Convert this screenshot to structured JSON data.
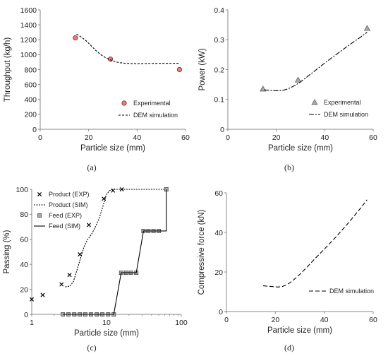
{
  "chart_data": [
    {
      "id": "a",
      "caption": "(a)",
      "type": "scatter",
      "xlabel": "Particle size (mm)",
      "ylabel": "Throughput (kg/h)",
      "xlim": [
        0,
        60
      ],
      "ylim": [
        0,
        1600
      ],
      "xticks": [
        0,
        20,
        40,
        60
      ],
      "yticks": [
        0,
        200,
        400,
        600,
        800,
        1000,
        1200,
        1400,
        1600
      ],
      "grid": false,
      "legend_position": "bottom-right",
      "series": [
        {
          "name": "Experimental",
          "kind": "marker",
          "marker": "circle",
          "color": "#e8807a",
          "x": [
            14.5,
            29,
            57.5
          ],
          "y": [
            1225,
            940,
            800
          ]
        },
        {
          "name": "DEM simulation",
          "kind": "line",
          "dash": "3,2",
          "color": "#000000",
          "x": [
            15,
            17,
            19,
            21,
            23,
            25,
            27,
            29,
            31,
            33,
            35,
            38,
            42,
            46,
            50,
            54,
            57.5
          ],
          "y": [
            1275,
            1235,
            1185,
            1120,
            1055,
            1000,
            960,
            930,
            905,
            892,
            885,
            880,
            880,
            882,
            883,
            884,
            885
          ]
        }
      ]
    },
    {
      "id": "b",
      "caption": "(b)",
      "type": "scatter",
      "xlabel": "Particle size (mm)",
      "ylabel": "Power (kW)",
      "xlim": [
        0,
        60
      ],
      "ylim": [
        0,
        0.4
      ],
      "xticks": [
        0,
        20,
        40,
        60
      ],
      "yticks": [
        0,
        0.1,
        0.2,
        0.3,
        0.4
      ],
      "grid": false,
      "legend_position": "bottom-right",
      "series": [
        {
          "name": "Experimental",
          "kind": "marker",
          "marker": "triangle",
          "color": "#a9a9a9",
          "x": [
            14.5,
            29,
            57.5
          ],
          "y": [
            0.135,
            0.165,
            0.338
          ]
        },
        {
          "name": "DEM simulation",
          "kind": "line",
          "dash": "7,2,2,2",
          "color": "#000000",
          "x": [
            15,
            18,
            21,
            23,
            25,
            28,
            31,
            35,
            40,
            45,
            50,
            55,
            57.5
          ],
          "y": [
            0.132,
            0.13,
            0.129,
            0.131,
            0.136,
            0.148,
            0.165,
            0.19,
            0.222,
            0.252,
            0.282,
            0.31,
            0.325
          ]
        }
      ]
    },
    {
      "id": "c",
      "caption": "(c)",
      "type": "line",
      "xscale": "log",
      "xlabel": "Particle size (mm)",
      "ylabel": "Passing (%)",
      "xlim": [
        1,
        100
      ],
      "ylim": [
        0,
        100
      ],
      "xticks": [
        1,
        10,
        100
      ],
      "yticks": [
        0,
        20,
        40,
        60,
        80,
        100
      ],
      "grid": false,
      "legend_position": "top-left",
      "series": [
        {
          "name": "Product (EXP)",
          "kind": "marker",
          "marker": "cross",
          "color": "#000000",
          "x": [
            1,
            1.4,
            2.5,
            3.2,
            4.4,
            5.8,
            9.2,
            12.2,
            16,
            63
          ],
          "y": [
            12,
            15.5,
            24,
            31.5,
            48,
            71.5,
            92.5,
            99,
            100,
            100
          ]
        },
        {
          "name": "Product (SIM)",
          "kind": "line",
          "dash": "2,1.5",
          "color": "#000000",
          "x": [
            2.8,
            3.2,
            3.6,
            4.0,
            4.5,
            5.0,
            5.6,
            6.3,
            7.1,
            8.0,
            9.0,
            10.0,
            11.0,
            12.0,
            14.0,
            16.0,
            20.0,
            63.0
          ],
          "y": [
            22,
            22.5,
            26,
            35,
            45,
            54,
            60,
            64,
            70,
            77,
            87,
            96,
            99,
            100,
            100,
            100,
            100,
            100
          ]
        },
        {
          "name": "Feed (EXP)",
          "kind": "marker",
          "marker": "square",
          "color": "#a9a9a9",
          "x": [
            2.6,
            3.1,
            3.7,
            4.4,
            5.2,
            6.2,
            7.4,
            8.8,
            10.5,
            12.5,
            15.7,
            18.3,
            21.2,
            25,
            31.2,
            36.3,
            42.5,
            50,
            63
          ],
          "y": [
            0,
            0,
            0,
            0,
            0,
            0,
            0,
            0,
            0,
            0,
            33.3,
            33.3,
            33.3,
            33.3,
            66.7,
            66.7,
            66.7,
            66.7,
            100
          ]
        },
        {
          "name": "Feed (SIM)",
          "kind": "line",
          "dash": "",
          "color": "#000000",
          "x": [
            2.6,
            12.5,
            15.7,
            25,
            31.2,
            50,
            63,
            63
          ],
          "y": [
            0,
            0,
            33.3,
            33.3,
            66.7,
            66.7,
            66.7,
            100
          ]
        }
      ]
    },
    {
      "id": "d",
      "caption": "(d)",
      "type": "line",
      "xlabel": "Particle size (mm)",
      "ylabel": "Compressive force (kN)",
      "xlim": [
        0,
        60
      ],
      "ylim": [
        0,
        60
      ],
      "xticks": [
        0,
        20,
        40,
        60
      ],
      "yticks": [
        0,
        20,
        40,
        60
      ],
      "grid": false,
      "legend_position": "bottom-right",
      "series": [
        {
          "name": "DEM simulation",
          "kind": "line",
          "dash": "6,3",
          "color": "#000000",
          "x": [
            15,
            18,
            21,
            23,
            25,
            27,
            30,
            33,
            36,
            40,
            45,
            50,
            55,
            57.5
          ],
          "y": [
            13,
            12.7,
            12.4,
            12.7,
            13.8,
            15.5,
            18.8,
            22.5,
            26.5,
            31.5,
            38,
            45,
            52.5,
            56.5
          ]
        }
      ]
    }
  ]
}
